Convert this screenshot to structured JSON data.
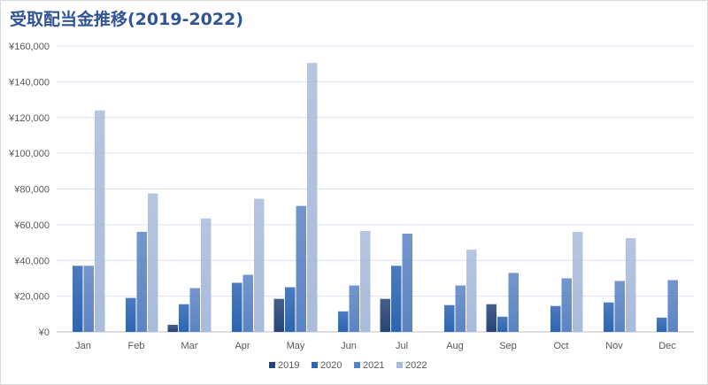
{
  "chart_data": {
    "type": "bar",
    "title": "受取配当金推移(2019-2022)",
    "xlabel": "",
    "ylabel": "",
    "categories": [
      "Jan",
      "Feb",
      "Mar",
      "Apr",
      "May",
      "Jun",
      "Jul",
      "Aug",
      "Sep",
      "Oct",
      "Nov",
      "Dec"
    ],
    "ylim": [
      0,
      160000
    ],
    "y_ticks": [
      0,
      20000,
      40000,
      60000,
      80000,
      100000,
      120000,
      140000,
      160000
    ],
    "y_tick_labels": [
      "¥0",
      "¥20,000",
      "¥40,000",
      "¥60,000",
      "¥80,000",
      "¥100,000",
      "¥120,000",
      "¥140,000",
      "¥160,000"
    ],
    "grid": true,
    "legend_position": "bottom",
    "series": [
      {
        "name": "2019",
        "color": "#264478",
        "values": [
          null,
          null,
          4000,
          null,
          18500,
          null,
          18500,
          null,
          15500,
          null,
          null,
          null
        ]
      },
      {
        "name": "2020",
        "color": "#2e64b0",
        "values": [
          37000,
          19000,
          15500,
          27500,
          25000,
          11500,
          37000,
          15000,
          8500,
          14500,
          16500,
          8000
        ]
      },
      {
        "name": "2021",
        "color": "#5b84c4",
        "values": [
          37000,
          56000,
          24500,
          32000,
          70500,
          26000,
          55000,
          26000,
          33000,
          30000,
          28500,
          29000
        ]
      },
      {
        "name": "2022",
        "color": "#a9bbdc",
        "values": [
          124000,
          77500,
          63500,
          74500,
          150500,
          56500,
          null,
          46000,
          null,
          56000,
          52500,
          null
        ]
      }
    ]
  }
}
